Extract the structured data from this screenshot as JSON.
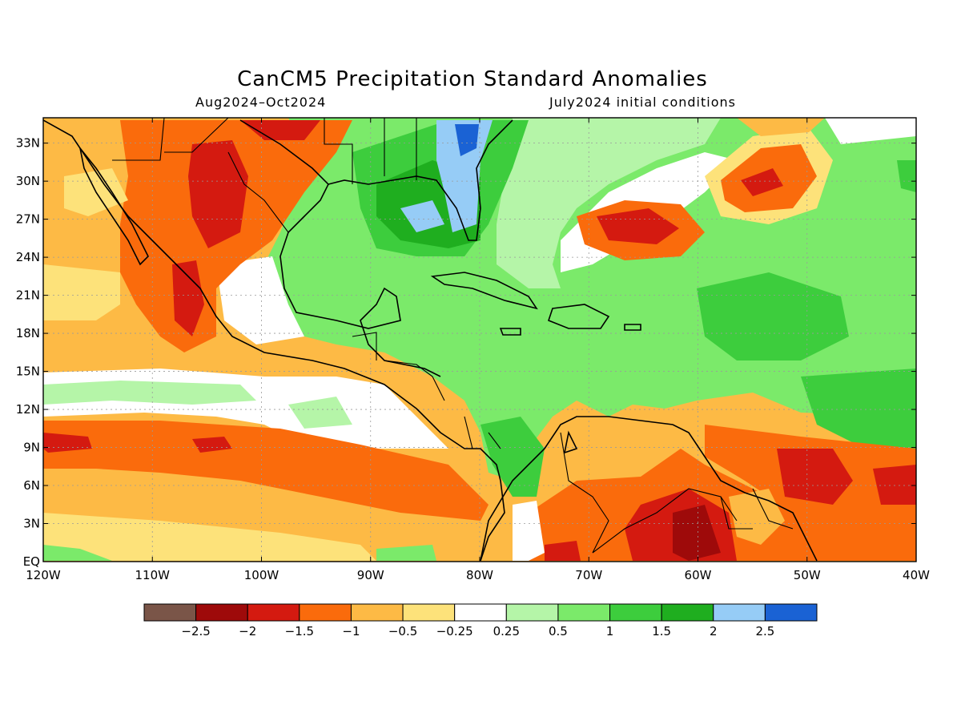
{
  "title": "CanCM5 Precipitation Standard Anomalies",
  "subtitle_left": "Aug2024–Oct2024",
  "subtitle_right": "July2024 initial conditions",
  "map": {
    "lon_range": [
      -120,
      -40
    ],
    "lat_range": [
      0,
      35
    ],
    "lat_ticks": [
      {
        "value": 33,
        "label": "33N"
      },
      {
        "value": 30,
        "label": "30N"
      },
      {
        "value": 27,
        "label": "27N"
      },
      {
        "value": 24,
        "label": "24N"
      },
      {
        "value": 21,
        "label": "21N"
      },
      {
        "value": 18,
        "label": "18N"
      },
      {
        "value": 15,
        "label": "15N"
      },
      {
        "value": 12,
        "label": "12N"
      },
      {
        "value": 9,
        "label": "9N"
      },
      {
        "value": 6,
        "label": "6N"
      },
      {
        "value": 3,
        "label": "3N"
      },
      {
        "value": 0,
        "label": "EQ"
      }
    ],
    "lon_ticks": [
      {
        "value": -120,
        "label": "120W"
      },
      {
        "value": -110,
        "label": "110W"
      },
      {
        "value": -100,
        "label": "100W"
      },
      {
        "value": -90,
        "label": "90W"
      },
      {
        "value": -80,
        "label": "80W"
      },
      {
        "value": -70,
        "label": "70W"
      },
      {
        "value": -60,
        "label": "60W"
      },
      {
        "value": -50,
        "label": "50W"
      },
      {
        "value": -40,
        "label": "40W"
      }
    ],
    "grid": true
  },
  "colorbar": {
    "colors": [
      "#7a5548",
      "#9e0a0a",
      "#d41a10",
      "#fa6b0c",
      "#fdba45",
      "#fde27a",
      "#ffffff",
      "#b5f5a8",
      "#7bea6a",
      "#3dcd3d",
      "#1fae1f",
      "#96ccf6",
      "#1a62d4"
    ],
    "labels": [
      "−2.5",
      "−2",
      "−1.5",
      "−1",
      "−0.5",
      "−0.25",
      "0.25",
      "0.5",
      "1",
      "1.5",
      "2",
      "2.5"
    ]
  }
}
